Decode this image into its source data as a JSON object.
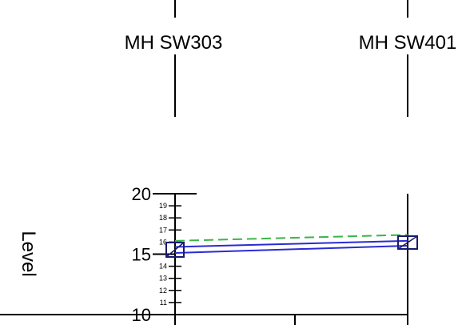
{
  "manholes": [
    {
      "label": "MH SW303"
    },
    {
      "label": "MH SW401"
    }
  ],
  "axis": {
    "label": "Level",
    "major_ticks": [
      "20",
      "15",
      "10"
    ],
    "minor_ticks": [
      "19",
      "18",
      "17",
      "16",
      "14",
      "13",
      "12",
      "11"
    ],
    "range": [
      10,
      20
    ]
  },
  "profile": {
    "pipe_invert": [
      15.1,
      15.7
    ],
    "pipe_top": [
      15.6,
      16.1
    ],
    "hydraulic_grade_dashed": [
      16.1,
      16.6
    ]
  },
  "colors": {
    "pipe": "#2b2bd4",
    "hydraulic_grade": "#3ab54a",
    "manhole_outline": "#1a1a6e",
    "axis": "#000000"
  }
}
